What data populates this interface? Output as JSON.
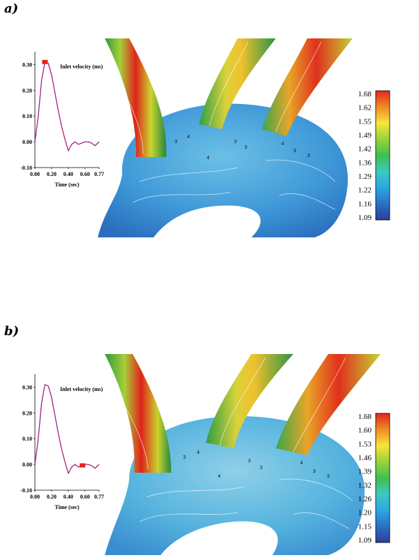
{
  "panels": [
    {
      "label": "a)",
      "inset_title": "Inlet velocity (ms)",
      "inset_xlabel": "Time (sec)",
      "colorbar_ticks": [
        "1.68",
        "1.62",
        "1.55",
        "1.49",
        "1.42",
        "1.36",
        "1.29",
        "1.22",
        "1.16",
        "1.09"
      ],
      "marker_time": 0.12
    },
    {
      "label": "b)",
      "inset_title": "Inlet velocity (ms)",
      "inset_xlabel": "Time (sec)",
      "colorbar_ticks": [
        "1.68",
        "1.60",
        "1.53",
        "1.46",
        "1.39",
        "1.32",
        "1.26",
        "1.20",
        "1.15",
        "1.09"
      ],
      "marker_time": 0.57
    }
  ],
  "chart_data": [
    {
      "type": "line",
      "title": "Inlet velocity (ms)",
      "xlabel": "Time (sec)",
      "ylabel": "",
      "xlim": [
        0,
        0.77
      ],
      "ylim": [
        -0.1,
        0.35
      ],
      "x_ticks": [
        "0.00",
        "0.20",
        "0.40",
        "0.60",
        "0.77"
      ],
      "y_ticks": [
        "0.30",
        "0.20",
        "0.10",
        "0.00",
        "-0.10"
      ],
      "x": [
        0.0,
        0.04,
        0.08,
        0.12,
        0.16,
        0.2,
        0.24,
        0.28,
        0.32,
        0.36,
        0.4,
        0.44,
        0.48,
        0.52,
        0.56,
        0.6,
        0.64,
        0.68,
        0.72,
        0.77
      ],
      "y": [
        0.0,
        0.1,
        0.24,
        0.31,
        0.305,
        0.26,
        0.19,
        0.12,
        0.06,
        0.01,
        -0.035,
        -0.01,
        0.0,
        -0.01,
        -0.005,
        0.0,
        0.0,
        -0.005,
        -0.015,
        0.0
      ],
      "marker_x": 0.12,
      "marker_color": "#e8231b",
      "line_color": "#a0227e"
    },
    {
      "type": "line",
      "title": "Inlet velocity (ms)",
      "xlabel": "Time (sec)",
      "ylabel": "",
      "xlim": [
        0,
        0.77
      ],
      "ylim": [
        -0.1,
        0.35
      ],
      "x_ticks": [
        "0.00",
        "0.20",
        "0.40",
        "0.60",
        "0.77"
      ],
      "y_ticks": [
        "0.30",
        "0.20",
        "0.10",
        "0.00",
        "-0.10"
      ],
      "x": [
        0.0,
        0.04,
        0.08,
        0.12,
        0.16,
        0.2,
        0.24,
        0.28,
        0.32,
        0.36,
        0.4,
        0.44,
        0.48,
        0.52,
        0.56,
        0.6,
        0.64,
        0.68,
        0.72,
        0.77
      ],
      "y": [
        0.0,
        0.1,
        0.24,
        0.31,
        0.305,
        0.26,
        0.19,
        0.12,
        0.06,
        0.01,
        -0.035,
        -0.01,
        0.0,
        -0.01,
        -0.005,
        0.0,
        0.0,
        -0.005,
        -0.015,
        0.0
      ],
      "marker_x": 0.57,
      "marker_color": "#e8231b",
      "line_color": "#a0227e"
    }
  ],
  "colorbar_colors": [
    "#e3271e",
    "#f08a24",
    "#f7e63a",
    "#98d33c",
    "#3fbf4f",
    "#3ec8c0",
    "#2aa9e0",
    "#2c6fc7",
    "#2c3f9a"
  ],
  "aorta_color": "#4aa6dd",
  "contour_numbers": [
    "3",
    "4",
    "3",
    "3",
    "4",
    "3",
    "3",
    "4"
  ]
}
